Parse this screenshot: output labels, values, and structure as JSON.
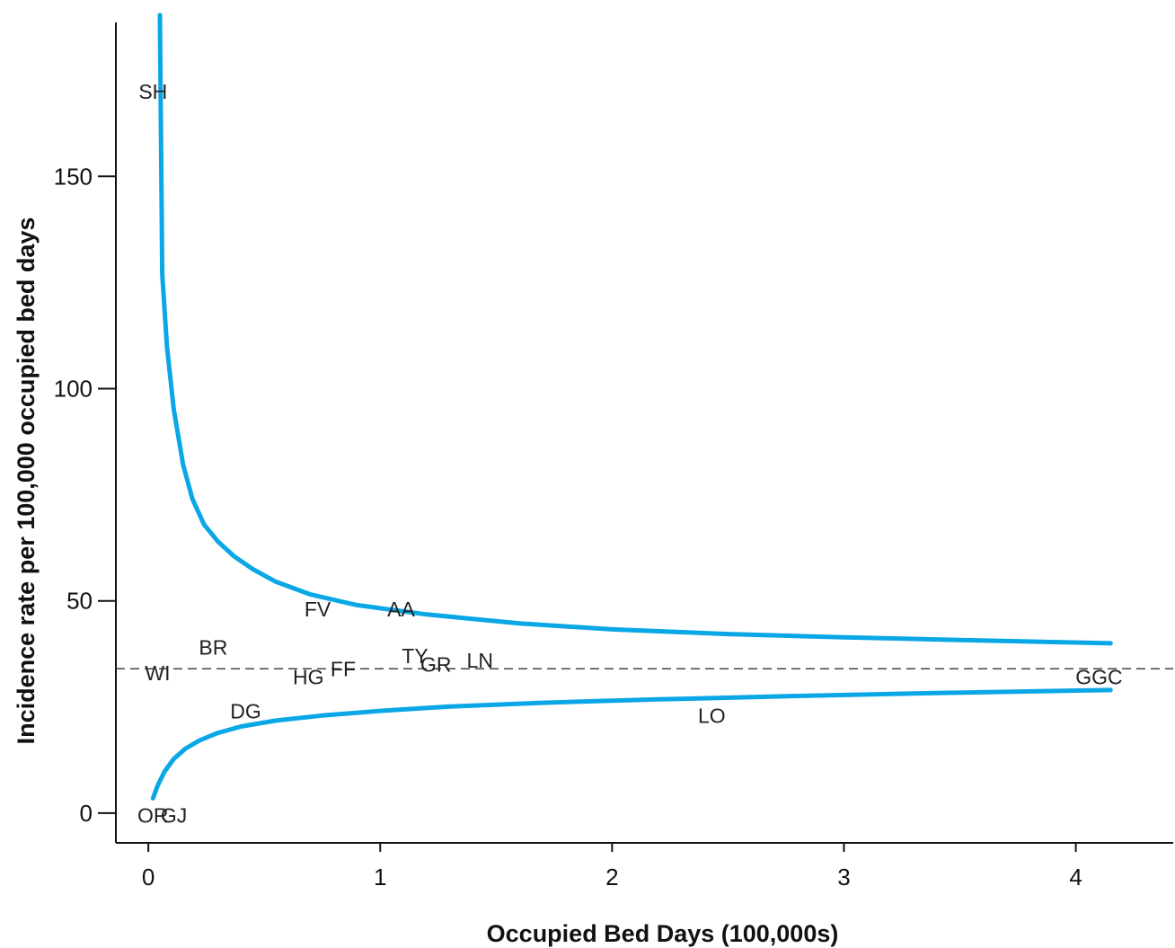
{
  "chart_data": {
    "type": "scatter",
    "title": "",
    "xlabel": "Occupied Bed Days (100,000s)",
    "ylabel": "Incidence rate per 100,000 occupied bed days",
    "xlim": [
      -0.14,
      4.42
    ],
    "ylim": [
      -7,
      189
    ],
    "x_ticks": [
      0,
      1,
      2,
      3,
      4
    ],
    "y_ticks": [
      0,
      50,
      100,
      150
    ],
    "grid": false,
    "legend": "none",
    "mean_rate": 34,
    "mean_line_color": "#444444",
    "limit_color": "#0aa7e6",
    "points": [
      {
        "label": "SH",
        "x": 0.02,
        "y": 170
      },
      {
        "label": "WI",
        "x": 0.04,
        "y": 33
      },
      {
        "label": "OR",
        "x": 0.02,
        "y": -0.5
      },
      {
        "label": "GJ",
        "x": 0.11,
        "y": -0.5
      },
      {
        "label": "BR",
        "x": 0.28,
        "y": 39
      },
      {
        "label": "DG",
        "x": 0.42,
        "y": 24
      },
      {
        "label": "FV",
        "x": 0.73,
        "y": 48
      },
      {
        "label": "HG",
        "x": 0.69,
        "y": 32
      },
      {
        "label": "FF",
        "x": 0.84,
        "y": 34
      },
      {
        "label": "AA",
        "x": 1.09,
        "y": 48
      },
      {
        "label": "TY",
        "x": 1.15,
        "y": 37
      },
      {
        "label": "GR",
        "x": 1.24,
        "y": 35
      },
      {
        "label": "LN",
        "x": 1.43,
        "y": 36
      },
      {
        "label": "LO",
        "x": 2.43,
        "y": 23
      },
      {
        "label": "GGC",
        "x": 4.1,
        "y": 32
      }
    ],
    "upper_limit": {
      "x": [
        0.05,
        0.06,
        0.08,
        0.11,
        0.15,
        0.19,
        0.24,
        0.3,
        0.37,
        0.45,
        0.55,
        0.7,
        0.9,
        1.2,
        1.6,
        2.0,
        2.5,
        3.0,
        3.5,
        4.15
      ],
      "y": [
        188,
        127,
        110,
        95,
        82,
        74,
        68,
        64,
        60.5,
        57.5,
        54.5,
        51.5,
        49,
        46.8,
        44.7,
        43.3,
        42.2,
        41.4,
        40.8,
        40
      ]
    },
    "lower_limit": {
      "x": [
        0.02,
        0.04,
        0.07,
        0.11,
        0.16,
        0.22,
        0.3,
        0.4,
        0.55,
        0.75,
        1.0,
        1.3,
        1.7,
        2.2,
        2.8,
        3.4,
        4.15
      ],
      "y": [
        3.5,
        6.5,
        9.8,
        12.8,
        15.2,
        17.1,
        18.9,
        20.4,
        21.8,
        23,
        24.1,
        25.1,
        26,
        26.8,
        27.6,
        28.3,
        29
      ]
    }
  }
}
